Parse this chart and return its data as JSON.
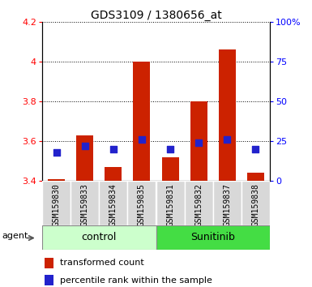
{
  "title": "GDS3109 / 1380656_at",
  "samples": [
    "GSM159830",
    "GSM159833",
    "GSM159834",
    "GSM159835",
    "GSM159831",
    "GSM159832",
    "GSM159837",
    "GSM159838"
  ],
  "red_values": [
    3.41,
    3.63,
    3.47,
    4.0,
    3.52,
    3.8,
    4.06,
    3.44
  ],
  "blue_values_pct": [
    18,
    22,
    20,
    26,
    20,
    24,
    26,
    20
  ],
  "ylim_left": [
    3.4,
    4.2
  ],
  "ylim_right": [
    0,
    100
  ],
  "yticks_left": [
    3.4,
    3.6,
    3.8,
    4.0,
    4.2
  ],
  "ytick_labels_left": [
    "3.4",
    "3.6",
    "3.8",
    "4",
    "4.2"
  ],
  "yticks_right": [
    0,
    25,
    50,
    75,
    100
  ],
  "ytick_labels_right": [
    "0",
    "25",
    "50",
    "75",
    "100%"
  ],
  "groups": [
    {
      "label": "control",
      "indices": [
        0,
        1,
        2,
        3
      ],
      "color": "#ccffcc",
      "edgecolor": "#aaaaaa"
    },
    {
      "label": "Sunitinib",
      "indices": [
        4,
        5,
        6,
        7
      ],
      "color": "#44dd44",
      "edgecolor": "#aaaaaa"
    }
  ],
  "agent_label": "agent",
  "bar_color": "#cc2200",
  "dot_color": "#2222cc",
  "bar_bottom": 3.4,
  "bar_width": 0.6,
  "dot_size": 40,
  "plot_bg": "#ffffff",
  "sample_label_bg": "#d8d8d8",
  "legend_items": [
    "transformed count",
    "percentile rank within the sample"
  ]
}
